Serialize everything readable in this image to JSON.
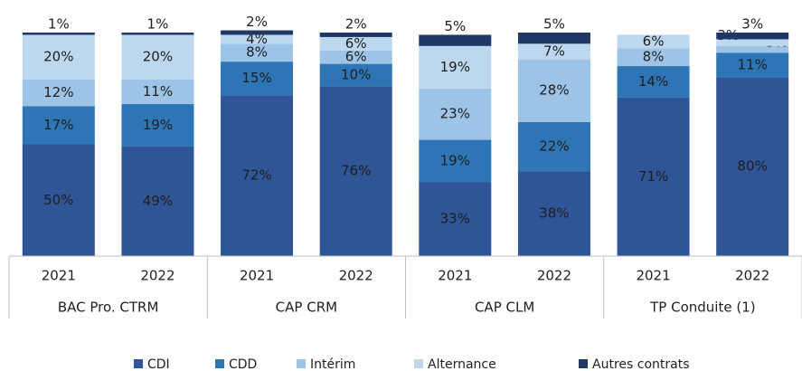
{
  "chart_data": {
    "type": "stacked_bar",
    "categories": [
      "2021",
      "2022",
      "2021",
      "2022",
      "2021",
      "2022",
      "2021",
      "2022"
    ],
    "groups": [
      "BAC Pro. CTRM",
      "CAP CRM",
      "CAP CLM",
      "TP Conduite (1)"
    ],
    "ylim": [
      0,
      100
    ],
    "legend": "bottom",
    "series": [
      {
        "name": "CDI",
        "color": "#2f5597",
        "label_color": "#ffffff",
        "values": [
          50,
          49,
          72,
          76,
          33,
          38,
          71,
          80
        ],
        "value_labels": [
          "50%",
          "49%",
          "72%",
          "76%",
          "33%",
          "38%",
          "71%",
          "80%"
        ]
      },
      {
        "name": "CDD",
        "color": "#2e75b6",
        "label_color": "#ffffff",
        "values": [
          17,
          19,
          15,
          10,
          19,
          22,
          14,
          11
        ],
        "value_labels": [
          "17%",
          "19%",
          "15%",
          "10%",
          "19%",
          "22%",
          "14%",
          "11%"
        ]
      },
      {
        "name": "Intérim",
        "color": "#9dc3e6",
        "label_color": "#1f1f1f",
        "values": [
          12,
          11,
          8,
          6,
          23,
          28,
          8,
          3
        ],
        "value_labels": [
          "12%",
          "11%",
          "8%",
          "6%",
          "23%",
          "28%",
          "8%",
          "3%"
        ]
      },
      {
        "name": "Alternance",
        "color": "#bdd7ee",
        "label_color": "#1f1f1f",
        "values": [
          20,
          20,
          4,
          6,
          19,
          7,
          6,
          3
        ],
        "value_labels": [
          "20%",
          "20%",
          "4%",
          "6%",
          "19%",
          "7%",
          "6%",
          "3%"
        ]
      },
      {
        "name": "Autres contrats",
        "color": "#1f3864",
        "label_color": "#1f1f1f",
        "values": [
          1,
          1,
          2,
          2,
          5,
          5,
          null,
          3
        ],
        "value_labels": [
          "1%",
          "1%",
          "2%",
          "2%",
          "5%",
          "5%",
          null,
          "3%"
        ]
      }
    ]
  }
}
